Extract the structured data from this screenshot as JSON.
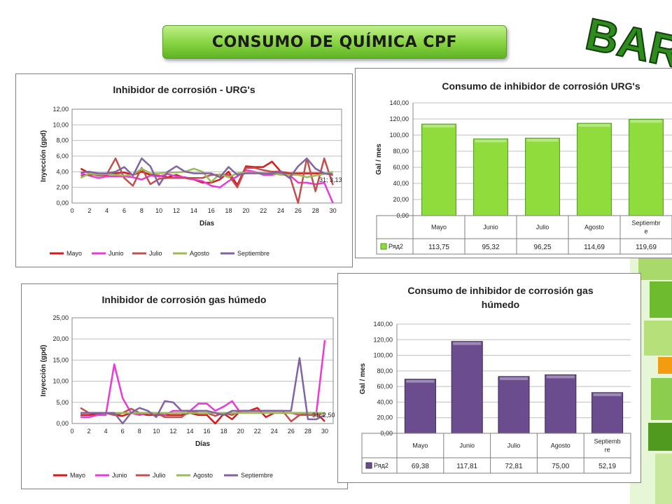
{
  "slide_title": "CONSUMO DE QUÍMICA CPF",
  "brand_text": "BARR",
  "colors": {
    "Mayo": "#d7191c",
    "Junio": "#e83ad6",
    "Julio": "#c0504d",
    "Agosto": "#9bbb59",
    "Septiembre": "#8064a2",
    "bar_green": "#8fdc3c",
    "bar_purple": "#6b4c8f"
  },
  "chart_data": [
    {
      "type": "line",
      "title": "Inhibidor de corrosión - URG's",
      "xlabel": "Días",
      "ylabel": "Inyección (gpd)",
      "ylim": [
        0,
        12
      ],
      "yticks": [
        "0,00",
        "2,00",
        "4,00",
        "6,00",
        "8,00",
        "10,00",
        "12,00"
      ],
      "xlim": [
        0,
        31
      ],
      "xticks": [
        "0",
        "2",
        "4",
        "6",
        "8",
        "10",
        "12",
        "14",
        "16",
        "18",
        "20",
        "22",
        "24",
        "26",
        "28",
        "30"
      ],
      "annotation": "31; 3,13",
      "legend": "bottom",
      "series": [
        {
          "name": "Mayo",
          "x": [
            1,
            2,
            3,
            4,
            5,
            6,
            7,
            8,
            9,
            10,
            11,
            12,
            13,
            14,
            15,
            16,
            17,
            18,
            19,
            20,
            21,
            22,
            23,
            24,
            25,
            26,
            27,
            28,
            29,
            30
          ],
          "values": [
            4.4,
            3.8,
            3.5,
            3.6,
            3.8,
            3.9,
            3.6,
            4.0,
            3.6,
            3.5,
            3.3,
            3.6,
            3.2,
            3.0,
            2.6,
            2.6,
            3.0,
            4.0,
            2.3,
            4.7,
            4.6,
            4.6,
            5.3,
            4.0,
            3.8,
            3.8,
            3.8,
            3.8,
            3.8,
            3.6
          ]
        },
        {
          "name": "Junio",
          "x": [
            1,
            2,
            3,
            4,
            5,
            6,
            7,
            8,
            9,
            10,
            11,
            12,
            13,
            14,
            15,
            16,
            17,
            18,
            19,
            20,
            21,
            22,
            23,
            24,
            25,
            26,
            27,
            28,
            29,
            30
          ],
          "values": [
            3.8,
            3.5,
            3.2,
            3.4,
            3.4,
            3.4,
            3.3,
            3.0,
            3.5,
            3.4,
            3.7,
            3.4,
            3.3,
            3.0,
            2.8,
            2.2,
            2.0,
            2.8,
            3.4,
            4.2,
            4.0,
            3.6,
            3.6,
            3.8,
            3.6,
            2.6,
            2.6,
            2.4,
            2.6,
            0.0
          ]
        },
        {
          "name": "Julio",
          "x": [
            1,
            2,
            3,
            4,
            5,
            6,
            7,
            8,
            9,
            10,
            11,
            12,
            13,
            14,
            15,
            16,
            17,
            18,
            19,
            20,
            21,
            22,
            23,
            24,
            25,
            26,
            27,
            28,
            29,
            30
          ],
          "values": [
            3.5,
            3.6,
            3.7,
            3.7,
            5.7,
            3.2,
            2.2,
            4.5,
            2.4,
            3.1,
            3.2,
            3.2,
            3.2,
            3.2,
            3.2,
            3.6,
            3.6,
            3.6,
            2.0,
            4.5,
            4.5,
            4.2,
            4.0,
            4.0,
            3.6,
            0.0,
            5.7,
            1.5,
            5.7,
            2.3
          ]
        },
        {
          "name": "Agosto",
          "x": [
            1,
            2,
            3,
            4,
            5,
            6,
            7,
            8,
            9,
            10,
            11,
            12,
            13,
            14,
            15,
            16,
            17,
            18,
            19,
            20,
            21,
            22,
            23,
            24,
            25,
            26,
            27,
            28,
            29,
            30
          ],
          "values": [
            3.2,
            3.8,
            3.6,
            3.7,
            3.6,
            3.5,
            3.6,
            4.4,
            3.8,
            3.8,
            3.9,
            3.9,
            4.0,
            4.4,
            4.0,
            2.7,
            3.7,
            3.3,
            3.8,
            3.9,
            3.9,
            3.8,
            3.8,
            3.6,
            3.6,
            3.6,
            3.3,
            3.5,
            3.7,
            4.0
          ]
        },
        {
          "name": "Septiembre",
          "x": [
            1,
            2,
            3,
            4,
            5,
            6,
            7,
            8,
            9,
            10,
            11,
            12,
            13,
            14,
            15,
            16,
            17,
            18,
            19,
            20,
            21,
            22,
            23,
            24,
            25,
            26,
            27,
            28,
            29,
            30
          ],
          "values": [
            3.9,
            4.0,
            3.8,
            3.8,
            4.0,
            4.6,
            3.5,
            5.7,
            4.7,
            2.3,
            4.0,
            4.7,
            4.0,
            3.8,
            3.8,
            3.8,
            3.3,
            4.6,
            3.6,
            3.8,
            3.8,
            3.8,
            3.8,
            4.0,
            3.2,
            4.7,
            5.7,
            4.4,
            3.8,
            3.7
          ]
        }
      ]
    },
    {
      "type": "bar",
      "title": "Consumo de inhibidor de corrosión URG's",
      "ylabel": "Gal / mes",
      "ylim": [
        0,
        140
      ],
      "yticks": [
        "0,00",
        "20,00",
        "40,00",
        "60,00",
        "80,00",
        "100,00",
        "120,00",
        "140,00"
      ],
      "categories": [
        "Mayo",
        "Junio",
        "Julio",
        "Agosto",
        "Septiembre"
      ],
      "category_labels": [
        "Mayo",
        "Junio",
        "Julio",
        "Agosto",
        "Septiembr e"
      ],
      "series": [
        {
          "name": "Ряд2",
          "values": [
            113.75,
            95.32,
            96.25,
            114.69,
            119.69
          ],
          "labels": [
            "113,75",
            "95,32",
            "96,25",
            "114,69",
            "119,69"
          ]
        }
      ]
    },
    {
      "type": "line",
      "title": "Inhibidor de corrosión gas húmedo",
      "xlabel": "Días",
      "ylabel": "Inyección (gpd)",
      "ylim": [
        0,
        25
      ],
      "yticks": [
        "0,00",
        "5,00",
        "10,00",
        "15,00",
        "20,00",
        "25,00"
      ],
      "xlim": [
        0,
        31
      ],
      "xticks": [
        "0",
        "2",
        "4",
        "6",
        "8",
        "10",
        "12",
        "14",
        "16",
        "18",
        "20",
        "22",
        "24",
        "26",
        "28",
        "30"
      ],
      "annotation": "31; 2,50",
      "legend": "bottom",
      "series": [
        {
          "name": "Mayo",
          "x": [
            1,
            2,
            3,
            4,
            5,
            6,
            7,
            8,
            9,
            10,
            11,
            12,
            13,
            14,
            15,
            16,
            17,
            18,
            19,
            20,
            21,
            22,
            23,
            24,
            25,
            26,
            27,
            28,
            29,
            30
          ],
          "values": [
            2.0,
            2.0,
            2.3,
            2.5,
            2.0,
            1.8,
            2.5,
            2.3,
            2.0,
            2.0,
            2.0,
            2.0,
            2.0,
            2.5,
            2.0,
            2.0,
            0.0,
            2.3,
            1.0,
            3.0,
            3.0,
            3.7,
            1.5,
            2.5,
            2.5,
            2.5,
            2.5,
            2.5,
            2.5,
            0.5
          ]
        },
        {
          "name": "Junio",
          "x": [
            1,
            2,
            3,
            4,
            5,
            6,
            7,
            8,
            9,
            10,
            11,
            12,
            13,
            14,
            15,
            16,
            17,
            18,
            19,
            20,
            21,
            22,
            23,
            24,
            25,
            26,
            27,
            28,
            29,
            30
          ],
          "values": [
            1.5,
            1.5,
            2.0,
            2.0,
            14.0,
            6.0,
            2.5,
            2.0,
            2.5,
            2.5,
            2.0,
            3.0,
            3.0,
            3.0,
            4.7,
            4.7,
            3.0,
            4.0,
            5.3,
            2.5,
            2.5,
            2.5,
            2.5,
            2.5,
            2.5,
            2.5,
            2.0,
            2.5,
            2.5,
            19.7
          ]
        },
        {
          "name": "Julio",
          "x": [
            1,
            2,
            3,
            4,
            5,
            6,
            7,
            8,
            9,
            10,
            11,
            12,
            13,
            14,
            15,
            16,
            17,
            18,
            19,
            20,
            21,
            22,
            23,
            24,
            25,
            26,
            27,
            28,
            29,
            30
          ],
          "values": [
            3.7,
            2.5,
            2.5,
            2.5,
            2.0,
            2.5,
            3.5,
            2.5,
            2.5,
            2.5,
            1.5,
            1.5,
            1.5,
            3.0,
            2.5,
            2.5,
            1.8,
            2.5,
            2.0,
            3.0,
            3.0,
            3.0,
            3.0,
            3.0,
            3.0,
            0.5,
            2.0,
            2.0,
            2.0,
            2.5
          ]
        },
        {
          "name": "Agosto",
          "x": [
            1,
            2,
            3,
            4,
            5,
            6,
            7,
            8,
            9,
            10,
            11,
            12,
            13,
            14,
            15,
            16,
            17,
            18,
            19,
            20,
            21,
            22,
            23,
            24,
            25,
            26,
            27,
            28,
            29,
            30
          ],
          "values": [
            2.5,
            2.5,
            2.5,
            2.5,
            2.5,
            2.5,
            2.5,
            2.5,
            2.5,
            2.5,
            2.5,
            2.5,
            2.5,
            2.5,
            2.5,
            2.5,
            2.5,
            2.5,
            2.5,
            2.5,
            2.5,
            2.5,
            2.5,
            2.5,
            2.5,
            2.5,
            2.5,
            2.5,
            2.5,
            2.5
          ]
        },
        {
          "name": "Septiembre",
          "x": [
            1,
            2,
            3,
            4,
            5,
            6,
            7,
            8,
            9,
            10,
            11,
            12,
            13,
            14,
            15,
            16,
            17,
            18,
            19,
            20,
            21,
            22,
            23,
            24,
            25,
            26,
            27,
            28,
            29,
            30
          ],
          "values": [
            2.5,
            2.5,
            2.5,
            2.5,
            2.5,
            0.0,
            2.5,
            3.7,
            3.0,
            1.5,
            5.3,
            5.0,
            3.0,
            3.0,
            3.0,
            3.0,
            2.5,
            2.0,
            3.0,
            3.0,
            3.0,
            3.0,
            3.0,
            3.0,
            3.0,
            3.0,
            15.5,
            1.0,
            1.0,
            2.0
          ]
        }
      ]
    },
    {
      "type": "bar",
      "title": "Consumo de inhibidor de corrosión gas húmedo",
      "ylabel": "Gal / mes",
      "ylim": [
        0,
        140
      ],
      "yticks": [
        "0,00",
        "20,00",
        "40,00",
        "60,00",
        "80,00",
        "100,00",
        "120,00",
        "140,00"
      ],
      "categories": [
        "Mayo",
        "Junio",
        "Julio",
        "Agosto",
        "Septiembre"
      ],
      "category_labels": [
        "Mayo",
        "Junio",
        "Julio",
        "Agosto",
        "Septiemb re"
      ],
      "series": [
        {
          "name": "Ряд2",
          "values": [
            69.38,
            117.81,
            72.81,
            75.0,
            52.19
          ],
          "labels": [
            "69,38",
            "117,81",
            "72,81",
            "75,00",
            "52,19"
          ]
        }
      ]
    }
  ]
}
